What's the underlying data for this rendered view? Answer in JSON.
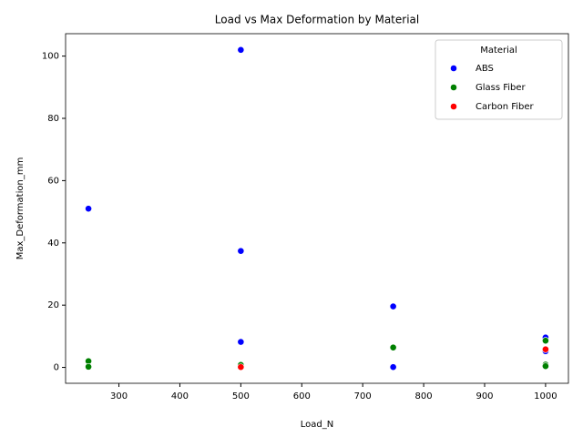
{
  "chart_data": {
    "type": "scatter",
    "title": "Load vs Max Deformation by Material",
    "x_label": "Load_N",
    "y_label": "Max_Deformation_mm",
    "legend_title": "Material",
    "legend_position": "upper right",
    "xlim": [
      212.5,
      1037.5
    ],
    "ylim": [
      -5.1,
      107.2
    ],
    "xticks": [
      300,
      400,
      500,
      600,
      700,
      800,
      900,
      1000
    ],
    "yticks": [
      0,
      20,
      40,
      60,
      80,
      100
    ],
    "series": [
      {
        "name": "ABS",
        "color": "#0000ff",
        "x": [
          250,
          500,
          500,
          500,
          750,
          750,
          1000,
          1000
        ],
        "values": [
          51,
          102,
          37.4,
          8.2,
          19.6,
          0.1,
          9.6,
          5.2
        ]
      },
      {
        "name": "Glass Fiber",
        "color": "#008000",
        "x": [
          250,
          250,
          500,
          750,
          1000,
          1000,
          1000
        ],
        "values": [
          2.0,
          0.2,
          0.8,
          6.4,
          8.6,
          0.9,
          0.4
        ]
      },
      {
        "name": "Carbon Fiber",
        "color": "#ff0000",
        "x": [
          500,
          1000
        ],
        "values": [
          0.1,
          5.8
        ]
      }
    ]
  }
}
